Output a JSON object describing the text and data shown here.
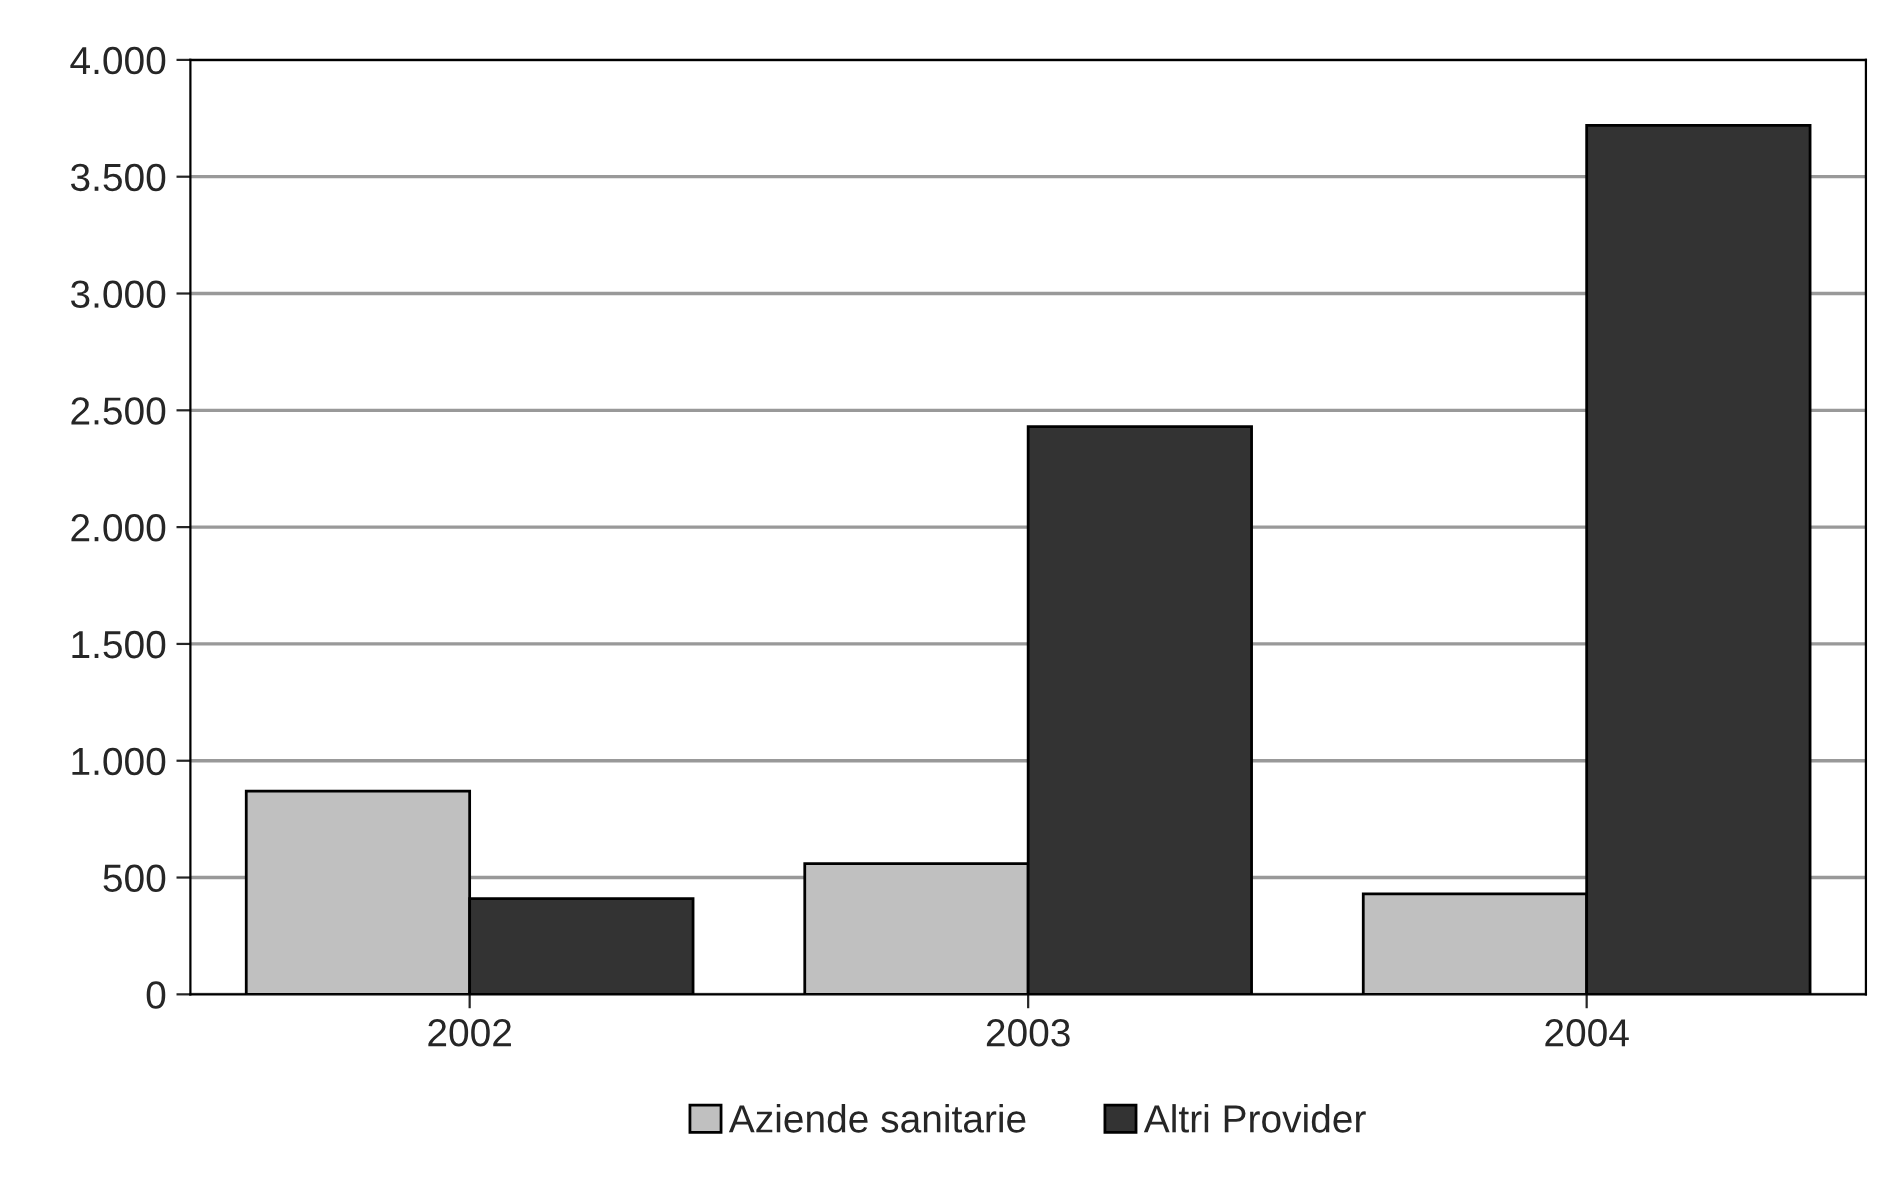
{
  "chart_data": {
    "type": "bar",
    "categories": [
      "2002",
      "2003",
      "2004"
    ],
    "series": [
      {
        "name": "Aziende sanitarie",
        "color": "#c0c0c0",
        "values": [
          870,
          560,
          430
        ]
      },
      {
        "name": "Altri Provider",
        "color": "#333333",
        "values": [
          410,
          2430,
          3720
        ]
      }
    ],
    "ylim": [
      0,
      4000
    ],
    "yticks": [
      0,
      500,
      {
        "value": 1000,
        "label": "1.000"
      },
      {
        "value": 1500,
        "label": "1.500"
      },
      {
        "value": 2000,
        "label": "2.000"
      },
      {
        "value": 2500,
        "label": "2.500"
      },
      {
        "value": 3000,
        "label": "3.000"
      },
      {
        "value": 3500,
        "label": "3.500"
      },
      {
        "value": 4000,
        "label": "4.000"
      }
    ],
    "grid": "y",
    "legend": "bottom"
  }
}
